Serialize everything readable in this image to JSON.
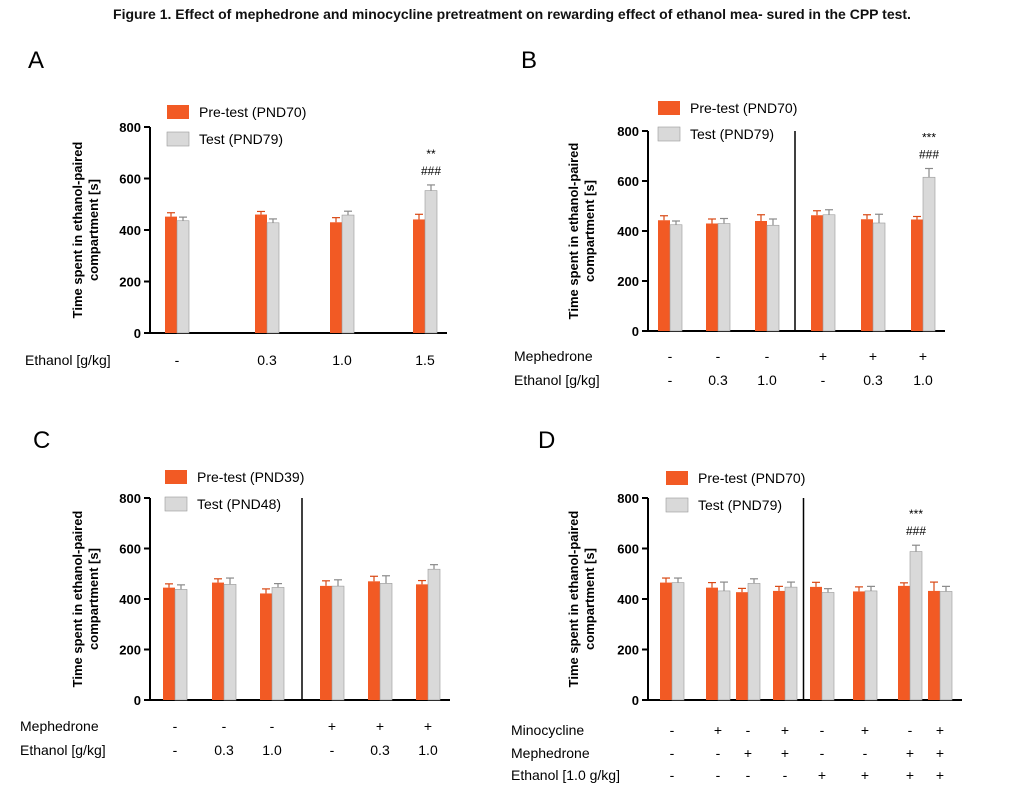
{
  "figure_title": "Figure 1. Effect of mephedrone and minocycline pretreatment on rewarding effect of ethanol mea- sured in the CPP test.",
  "colors": {
    "pretest": "#f25a24",
    "test": "#d9d9d9",
    "axis": "#000000"
  },
  "chart_data": [
    {
      "type": "bar",
      "panel": "A",
      "ylabel": "Time spent in ethanol-paired compartment [s]",
      "ylim": [
        0,
        800
      ],
      "yticks": [
        "0",
        "200",
        "400",
        "600",
        "800"
      ],
      "legend": [
        "Pre-test (PND70)",
        "Test (PND79)"
      ],
      "divider_after": null,
      "row_labels": [
        "Ethanol [g/kg]"
      ],
      "categories": [
        [
          "-"
        ],
        [
          "0.3"
        ],
        [
          "1.0"
        ],
        [
          "1.5"
        ]
      ],
      "series": [
        {
          "name": "Pre-test (PND70)",
          "values": [
            452,
            460,
            430,
            441
          ],
          "errors": [
            15,
            12,
            18,
            20
          ]
        },
        {
          "name": "Test (PND79)",
          "values": [
            436,
            428,
            458,
            553
          ],
          "errors": [
            14,
            15,
            15,
            22
          ]
        }
      ],
      "annotations": [
        {
          "group": 3,
          "lines": [
            "**",
            "###"
          ]
        }
      ]
    },
    {
      "type": "bar",
      "panel": "B",
      "ylabel": "Time spent in ethanol-paired compartment [s]",
      "ylim": [
        0,
        800
      ],
      "yticks": [
        "0",
        "200",
        "400",
        "600",
        "800"
      ],
      "legend": [
        "Pre-test (PND70)",
        "Test (PND79)"
      ],
      "divider_after": 2,
      "row_labels": [
        "Mephedrone",
        "Ethanol [g/kg]"
      ],
      "categories": [
        [
          "-",
          "-"
        ],
        [
          "-",
          "0.3"
        ],
        [
          "-",
          "1.0"
        ],
        [
          "+",
          "-"
        ],
        [
          "+",
          "0.3"
        ],
        [
          "+",
          "1.0"
        ]
      ],
      "series": [
        {
          "name": "Pre-test (PND70)",
          "values": [
            443,
            430,
            440,
            463,
            447,
            446
          ],
          "errors": [
            18,
            18,
            25,
            18,
            18,
            12
          ]
        },
        {
          "name": "Test (PND79)",
          "values": [
            425,
            430,
            423,
            465,
            432,
            615
          ],
          "errors": [
            15,
            20,
            25,
            20,
            35,
            35
          ]
        }
      ],
      "annotations": [
        {
          "group": 5,
          "lines": [
            "***",
            "###"
          ]
        }
      ]
    },
    {
      "type": "bar",
      "panel": "C",
      "ylabel": "Time spent in ethanol-paired compartment [s]",
      "ylim": [
        0,
        800
      ],
      "yticks": [
        "0",
        "200",
        "400",
        "600",
        "800"
      ],
      "legend": [
        "Pre-test (PND39)",
        "Test (PND48)"
      ],
      "divider_after": 2,
      "row_labels": [
        "Mephedrone",
        "Ethanol [g/kg]"
      ],
      "categories": [
        [
          "-",
          "-"
        ],
        [
          "-",
          "0.3"
        ],
        [
          "-",
          "1.0"
        ],
        [
          "+",
          "-"
        ],
        [
          "+",
          "0.3"
        ],
        [
          "+",
          "1.0"
        ]
      ],
      "series": [
        {
          "name": "Pre-test (PND39)",
          "values": [
            445,
            465,
            422,
            452,
            470,
            458
          ],
          "errors": [
            15,
            15,
            18,
            20,
            20,
            15
          ]
        },
        {
          "name": "Test (PND48)",
          "values": [
            438,
            458,
            446,
            451,
            462,
            518
          ],
          "errors": [
            18,
            25,
            15,
            25,
            30,
            18
          ]
        }
      ],
      "annotations": []
    },
    {
      "type": "bar",
      "panel": "D",
      "ylabel": "Time spent in ethanol-paired compartment [s]",
      "ylim": [
        0,
        800
      ],
      "yticks": [
        "0",
        "200",
        "400",
        "600",
        "800"
      ],
      "legend": [
        "Pre-test (PND70)",
        "Test (PND79)"
      ],
      "divider_after": 3,
      "row_labels": [
        "Minocycline",
        "Mephedrone",
        "Ethanol [1.0 g/kg]"
      ],
      "categories": [
        [
          "-",
          "-",
          "-"
        ],
        [
          "+",
          "-",
          "-"
        ],
        [
          "-",
          "+",
          "-"
        ],
        [
          "+",
          "+",
          "-"
        ],
        [
          "-",
          "-",
          "+"
        ],
        [
          "+",
          "-",
          "+"
        ],
        [
          "-",
          "+",
          "+"
        ],
        [
          "+",
          "+",
          "+"
        ]
      ],
      "series": [
        {
          "name": "Pre-test (PND70)",
          "values": [
            465,
            445,
            427,
            432,
            448,
            430,
            452,
            432
          ],
          "errors": [
            18,
            20,
            15,
            18,
            18,
            18,
            12,
            35
          ]
        },
        {
          "name": "Test (PND79)",
          "values": [
            465,
            432,
            462,
            447,
            426,
            432,
            588,
            430
          ],
          "errors": [
            18,
            35,
            18,
            20,
            15,
            18,
            25,
            20
          ]
        }
      ],
      "annotations": [
        {
          "group": 6,
          "lines": [
            "***",
            "###"
          ]
        }
      ]
    }
  ]
}
